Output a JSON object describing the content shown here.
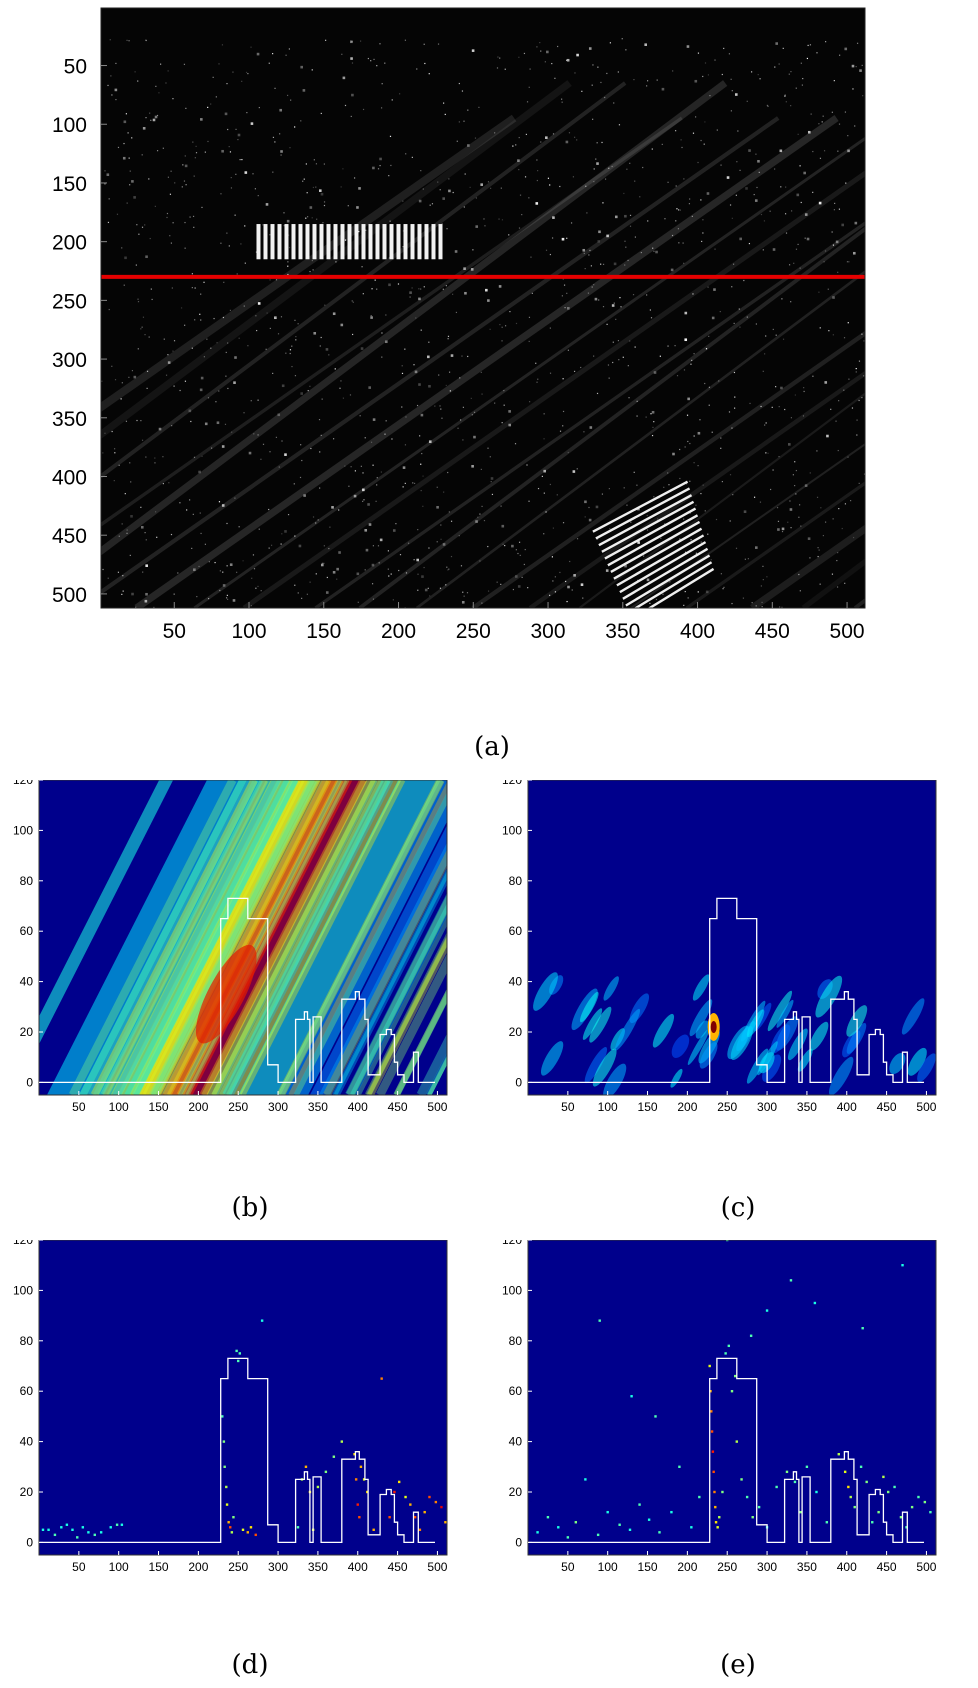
{
  "figure": {
    "captions": [
      "(a)",
      "(b)",
      "(c)",
      "(d)",
      "(e)"
    ]
  },
  "colors": {
    "profile_line": "#ffffff",
    "cut_line": "#e60000",
    "jet_background": "#00008c"
  },
  "chart_data": [
    {
      "id": "a",
      "type": "heatmap",
      "caption": "(a)",
      "title": "",
      "xlabel": "",
      "ylabel": "",
      "xlim": [
        1,
        512
      ],
      "ylim": [
        512,
        1
      ],
      "x_ticks": [
        50,
        100,
        150,
        200,
        250,
        300,
        350,
        400,
        450,
        500
      ],
      "y_ticks": [
        50,
        100,
        150,
        200,
        250,
        300,
        350,
        400,
        450,
        500
      ],
      "colormap": "gray",
      "annotations": [
        {
          "type": "hline",
          "y": 230,
          "color": "red"
        }
      ],
      "bright_structures": [
        {
          "x": [
            105,
            230
          ],
          "y": [
            185,
            215
          ],
          "description": "bright rectangular block"
        },
        {
          "x": [
            330,
            400
          ],
          "y": [
            430,
            510
          ],
          "description": "bright diagonal stripes"
        }
      ],
      "grid": false
    },
    {
      "id": "b",
      "type": "heatmap",
      "caption": "(b)",
      "xlim": [
        0,
        512
      ],
      "ylim": [
        -5,
        120
      ],
      "x_ticks": [
        50,
        100,
        150,
        200,
        250,
        300,
        350,
        400,
        450,
        500
      ],
      "y_ticks": [
        0,
        20,
        40,
        60,
        80,
        100,
        120
      ],
      "colormap": "jet",
      "grid": false,
      "profile": {
        "x": [
          0,
          228,
          228,
          237,
          237,
          262,
          262,
          274,
          274,
          287,
          287,
          300,
          300,
          322,
          322,
          333,
          333,
          337,
          337,
          340,
          340,
          344,
          344,
          347,
          347,
          354,
          354,
          355,
          355,
          380,
          380,
          397,
          397,
          400,
          400,
          402,
          402,
          405,
          405,
          409,
          409,
          413,
          413,
          421,
          421,
          428,
          428,
          436,
          436,
          442,
          442,
          446,
          446,
          450,
          450,
          458,
          458,
          470,
          470,
          476,
          476,
          484,
          484,
          497
        ],
        "y": [
          0,
          0,
          65,
          65,
          73,
          73,
          65,
          65,
          65,
          65,
          7,
          7,
          0,
          0,
          25,
          25,
          28,
          28,
          25,
          25,
          0,
          0,
          26,
          26,
          26,
          26,
          0,
          0,
          0,
          0,
          33,
          33,
          36,
          36,
          36,
          36,
          33,
          33,
          33,
          33,
          25,
          25,
          3,
          3,
          3,
          3,
          19,
          19,
          21,
          21,
          19,
          19,
          8,
          8,
          3,
          3,
          0,
          0,
          12,
          12,
          0,
          0,
          0,
          0
        ]
      }
    },
    {
      "id": "c",
      "type": "heatmap",
      "caption": "(c)",
      "xlim": [
        0,
        512
      ],
      "ylim": [
        -5,
        120
      ],
      "x_ticks": [
        50,
        100,
        150,
        200,
        250,
        300,
        350,
        400,
        450,
        500
      ],
      "y_ticks": [
        0,
        20,
        40,
        60,
        80,
        100,
        120
      ],
      "colormap": "jet",
      "grid": false,
      "peak": {
        "x": 233,
        "y": 22
      },
      "profile": {
        "x": [
          0,
          228,
          228,
          237,
          237,
          262,
          262,
          274,
          274,
          287,
          287,
          300,
          300,
          322,
          322,
          333,
          333,
          337,
          337,
          340,
          340,
          344,
          344,
          347,
          347,
          354,
          354,
          355,
          355,
          380,
          380,
          397,
          397,
          400,
          400,
          402,
          402,
          405,
          405,
          409,
          409,
          413,
          413,
          421,
          421,
          428,
          428,
          436,
          436,
          442,
          442,
          446,
          446,
          450,
          450,
          458,
          458,
          470,
          470,
          476,
          476,
          484,
          484,
          497
        ],
        "y": [
          0,
          0,
          65,
          65,
          73,
          73,
          65,
          65,
          65,
          65,
          7,
          7,
          0,
          0,
          25,
          25,
          28,
          28,
          25,
          25,
          0,
          0,
          26,
          26,
          26,
          26,
          0,
          0,
          0,
          0,
          33,
          33,
          36,
          36,
          36,
          36,
          33,
          33,
          33,
          33,
          25,
          25,
          3,
          3,
          3,
          3,
          19,
          19,
          21,
          21,
          19,
          19,
          8,
          8,
          3,
          3,
          0,
          0,
          12,
          12,
          0,
          0,
          0,
          0
        ]
      }
    },
    {
      "id": "d",
      "type": "scatter",
      "caption": "(d)",
      "xlim": [
        0,
        512
      ],
      "ylim": [
        -5,
        120
      ],
      "x_ticks": [
        50,
        100,
        150,
        200,
        250,
        300,
        350,
        400,
        450,
        500
      ],
      "y_ticks": [
        0,
        20,
        40,
        60,
        80,
        100,
        120
      ],
      "colormap": "jet",
      "grid": false,
      "points": {
        "x": [
          5,
          12,
          20,
          28,
          35,
          42,
          48,
          55,
          62,
          70,
          78,
          90,
          98,
          104,
          230,
          232,
          233,
          235,
          236,
          238,
          240,
          242,
          244,
          248,
          250,
          252,
          256,
          262,
          266,
          272,
          280,
          325,
          330,
          335,
          340,
          344,
          350,
          360,
          370,
          380,
          396,
          398,
          400,
          402,
          404,
          408,
          412,
          420,
          430,
          440,
          446,
          452,
          460,
          466,
          472,
          478,
          484,
          490,
          498,
          505,
          510
        ],
        "y": [
          5,
          5,
          3,
          6,
          7,
          5,
          2,
          6,
          4,
          3,
          4,
          6,
          7,
          7,
          50,
          40,
          30,
          22,
          15,
          8,
          6,
          4,
          10,
          76,
          72,
          75,
          5,
          4,
          6,
          3,
          88,
          6,
          25,
          30,
          20,
          5,
          22,
          28,
          34,
          40,
          35,
          25,
          15,
          10,
          30,
          25,
          20,
          5,
          65,
          10,
          20,
          24,
          18,
          15,
          10,
          5,
          12,
          18,
          16,
          14,
          8
        ],
        "v": [
          0.4,
          0.4,
          0.45,
          0.4,
          0.4,
          0.4,
          0.45,
          0.4,
          0.4,
          0.45,
          0.4,
          0.4,
          0.45,
          0.4,
          0.45,
          0.5,
          0.5,
          0.55,
          0.6,
          0.7,
          0.8,
          0.55,
          0.5,
          0.45,
          0.45,
          0.45,
          0.6,
          0.7,
          0.65,
          0.8,
          0.4,
          0.45,
          0.55,
          0.7,
          0.65,
          0.6,
          0.55,
          0.5,
          0.5,
          0.55,
          0.65,
          0.75,
          0.85,
          0.8,
          0.7,
          0.6,
          0.65,
          0.7,
          0.75,
          0.8,
          0.85,
          0.65,
          0.6,
          0.7,
          0.8,
          0.75,
          0.7,
          0.8,
          0.75,
          0.9,
          0.7
        ]
      },
      "profile": {
        "x": [
          0,
          228,
          228,
          237,
          237,
          262,
          262,
          274,
          274,
          287,
          287,
          300,
          300,
          322,
          322,
          333,
          333,
          337,
          337,
          340,
          340,
          344,
          344,
          347,
          347,
          354,
          354,
          355,
          355,
          380,
          380,
          397,
          397,
          400,
          400,
          402,
          402,
          405,
          405,
          409,
          409,
          413,
          413,
          421,
          421,
          428,
          428,
          436,
          436,
          442,
          442,
          446,
          446,
          450,
          450,
          458,
          458,
          470,
          470,
          476,
          476,
          484,
          484,
          497
        ],
        "y": [
          0,
          0,
          65,
          65,
          73,
          73,
          65,
          65,
          65,
          65,
          7,
          7,
          0,
          0,
          25,
          25,
          28,
          28,
          25,
          25,
          0,
          0,
          26,
          26,
          26,
          26,
          0,
          0,
          0,
          0,
          33,
          33,
          36,
          36,
          36,
          36,
          33,
          33,
          33,
          33,
          25,
          25,
          3,
          3,
          3,
          3,
          19,
          19,
          21,
          21,
          19,
          19,
          8,
          8,
          3,
          3,
          0,
          0,
          12,
          12,
          0,
          0,
          0,
          0
        ]
      }
    },
    {
      "id": "e",
      "type": "scatter",
      "caption": "(e)",
      "xlim": [
        0,
        512
      ],
      "ylim": [
        -5,
        120
      ],
      "x_ticks": [
        50,
        100,
        150,
        200,
        250,
        300,
        350,
        400,
        450,
        500
      ],
      "y_ticks": [
        0,
        20,
        40,
        60,
        80,
        100,
        120
      ],
      "colormap": "jet",
      "grid": false,
      "points": {
        "x": [
          12,
          25,
          38,
          50,
          60,
          72,
          88,
          100,
          115,
          128,
          140,
          152,
          165,
          180,
          190,
          205,
          215,
          228,
          229,
          230,
          231,
          232,
          233,
          234,
          235,
          236,
          238,
          240,
          244,
          248,
          252,
          256,
          262,
          268,
          275,
          282,
          290,
          300,
          312,
          325,
          335,
          342,
          350,
          362,
          375,
          390,
          398,
          402,
          405,
          410,
          418,
          425,
          432,
          440,
          446,
          452,
          460,
          468,
          475,
          482,
          490,
          498,
          505,
          330,
          300,
          280,
          360,
          420,
          470,
          160,
          130,
          90,
          260,
          250
        ],
        "y": [
          4,
          10,
          6,
          2,
          8,
          25,
          3,
          12,
          7,
          5,
          15,
          9,
          4,
          12,
          30,
          6,
          18,
          70,
          60,
          52,
          44,
          36,
          28,
          20,
          14,
          8,
          6,
          10,
          20,
          75,
          78,
          60,
          40,
          25,
          18,
          10,
          14,
          6,
          22,
          28,
          24,
          12,
          30,
          20,
          8,
          35,
          28,
          22,
          18,
          14,
          30,
          24,
          8,
          12,
          26,
          20,
          22,
          10,
          6,
          14,
          18,
          16,
          12,
          104,
          92,
          82,
          95,
          85,
          110,
          50,
          58,
          88,
          66,
          120
        ],
        "v": [
          0.4,
          0.45,
          0.4,
          0.45,
          0.5,
          0.4,
          0.45,
          0.4,
          0.45,
          0.4,
          0.45,
          0.4,
          0.45,
          0.4,
          0.45,
          0.4,
          0.45,
          0.6,
          0.7,
          0.75,
          0.8,
          0.85,
          0.8,
          0.75,
          0.7,
          0.65,
          0.6,
          0.55,
          0.5,
          0.45,
          0.45,
          0.5,
          0.55,
          0.5,
          0.45,
          0.5,
          0.45,
          0.4,
          0.45,
          0.5,
          0.45,
          0.5,
          0.45,
          0.4,
          0.45,
          0.55,
          0.6,
          0.65,
          0.55,
          0.5,
          0.45,
          0.5,
          0.45,
          0.5,
          0.55,
          0.5,
          0.45,
          0.5,
          0.45,
          0.5,
          0.45,
          0.5,
          0.45,
          0.45,
          0.4,
          0.45,
          0.4,
          0.45,
          0.4,
          0.45,
          0.4,
          0.45,
          0.5,
          0.45
        ]
      },
      "profile": {
        "x": [
          0,
          228,
          228,
          237,
          237,
          262,
          262,
          274,
          274,
          287,
          287,
          300,
          300,
          322,
          322,
          333,
          333,
          337,
          337,
          340,
          340,
          344,
          344,
          347,
          347,
          354,
          354,
          355,
          355,
          380,
          380,
          397,
          397,
          400,
          400,
          402,
          402,
          405,
          405,
          409,
          409,
          413,
          413,
          421,
          421,
          428,
          428,
          436,
          436,
          442,
          442,
          446,
          446,
          450,
          450,
          458,
          458,
          470,
          470,
          476,
          476,
          484,
          484,
          497
        ],
        "y": [
          0,
          0,
          65,
          65,
          73,
          73,
          65,
          65,
          65,
          65,
          7,
          7,
          0,
          0,
          25,
          25,
          28,
          28,
          25,
          25,
          0,
          0,
          26,
          26,
          26,
          26,
          0,
          0,
          0,
          0,
          33,
          33,
          36,
          36,
          36,
          36,
          33,
          33,
          33,
          33,
          25,
          25,
          3,
          3,
          3,
          3,
          19,
          19,
          21,
          21,
          19,
          19,
          8,
          8,
          3,
          3,
          0,
          0,
          12,
          12,
          0,
          0,
          0,
          0
        ]
      }
    }
  ]
}
